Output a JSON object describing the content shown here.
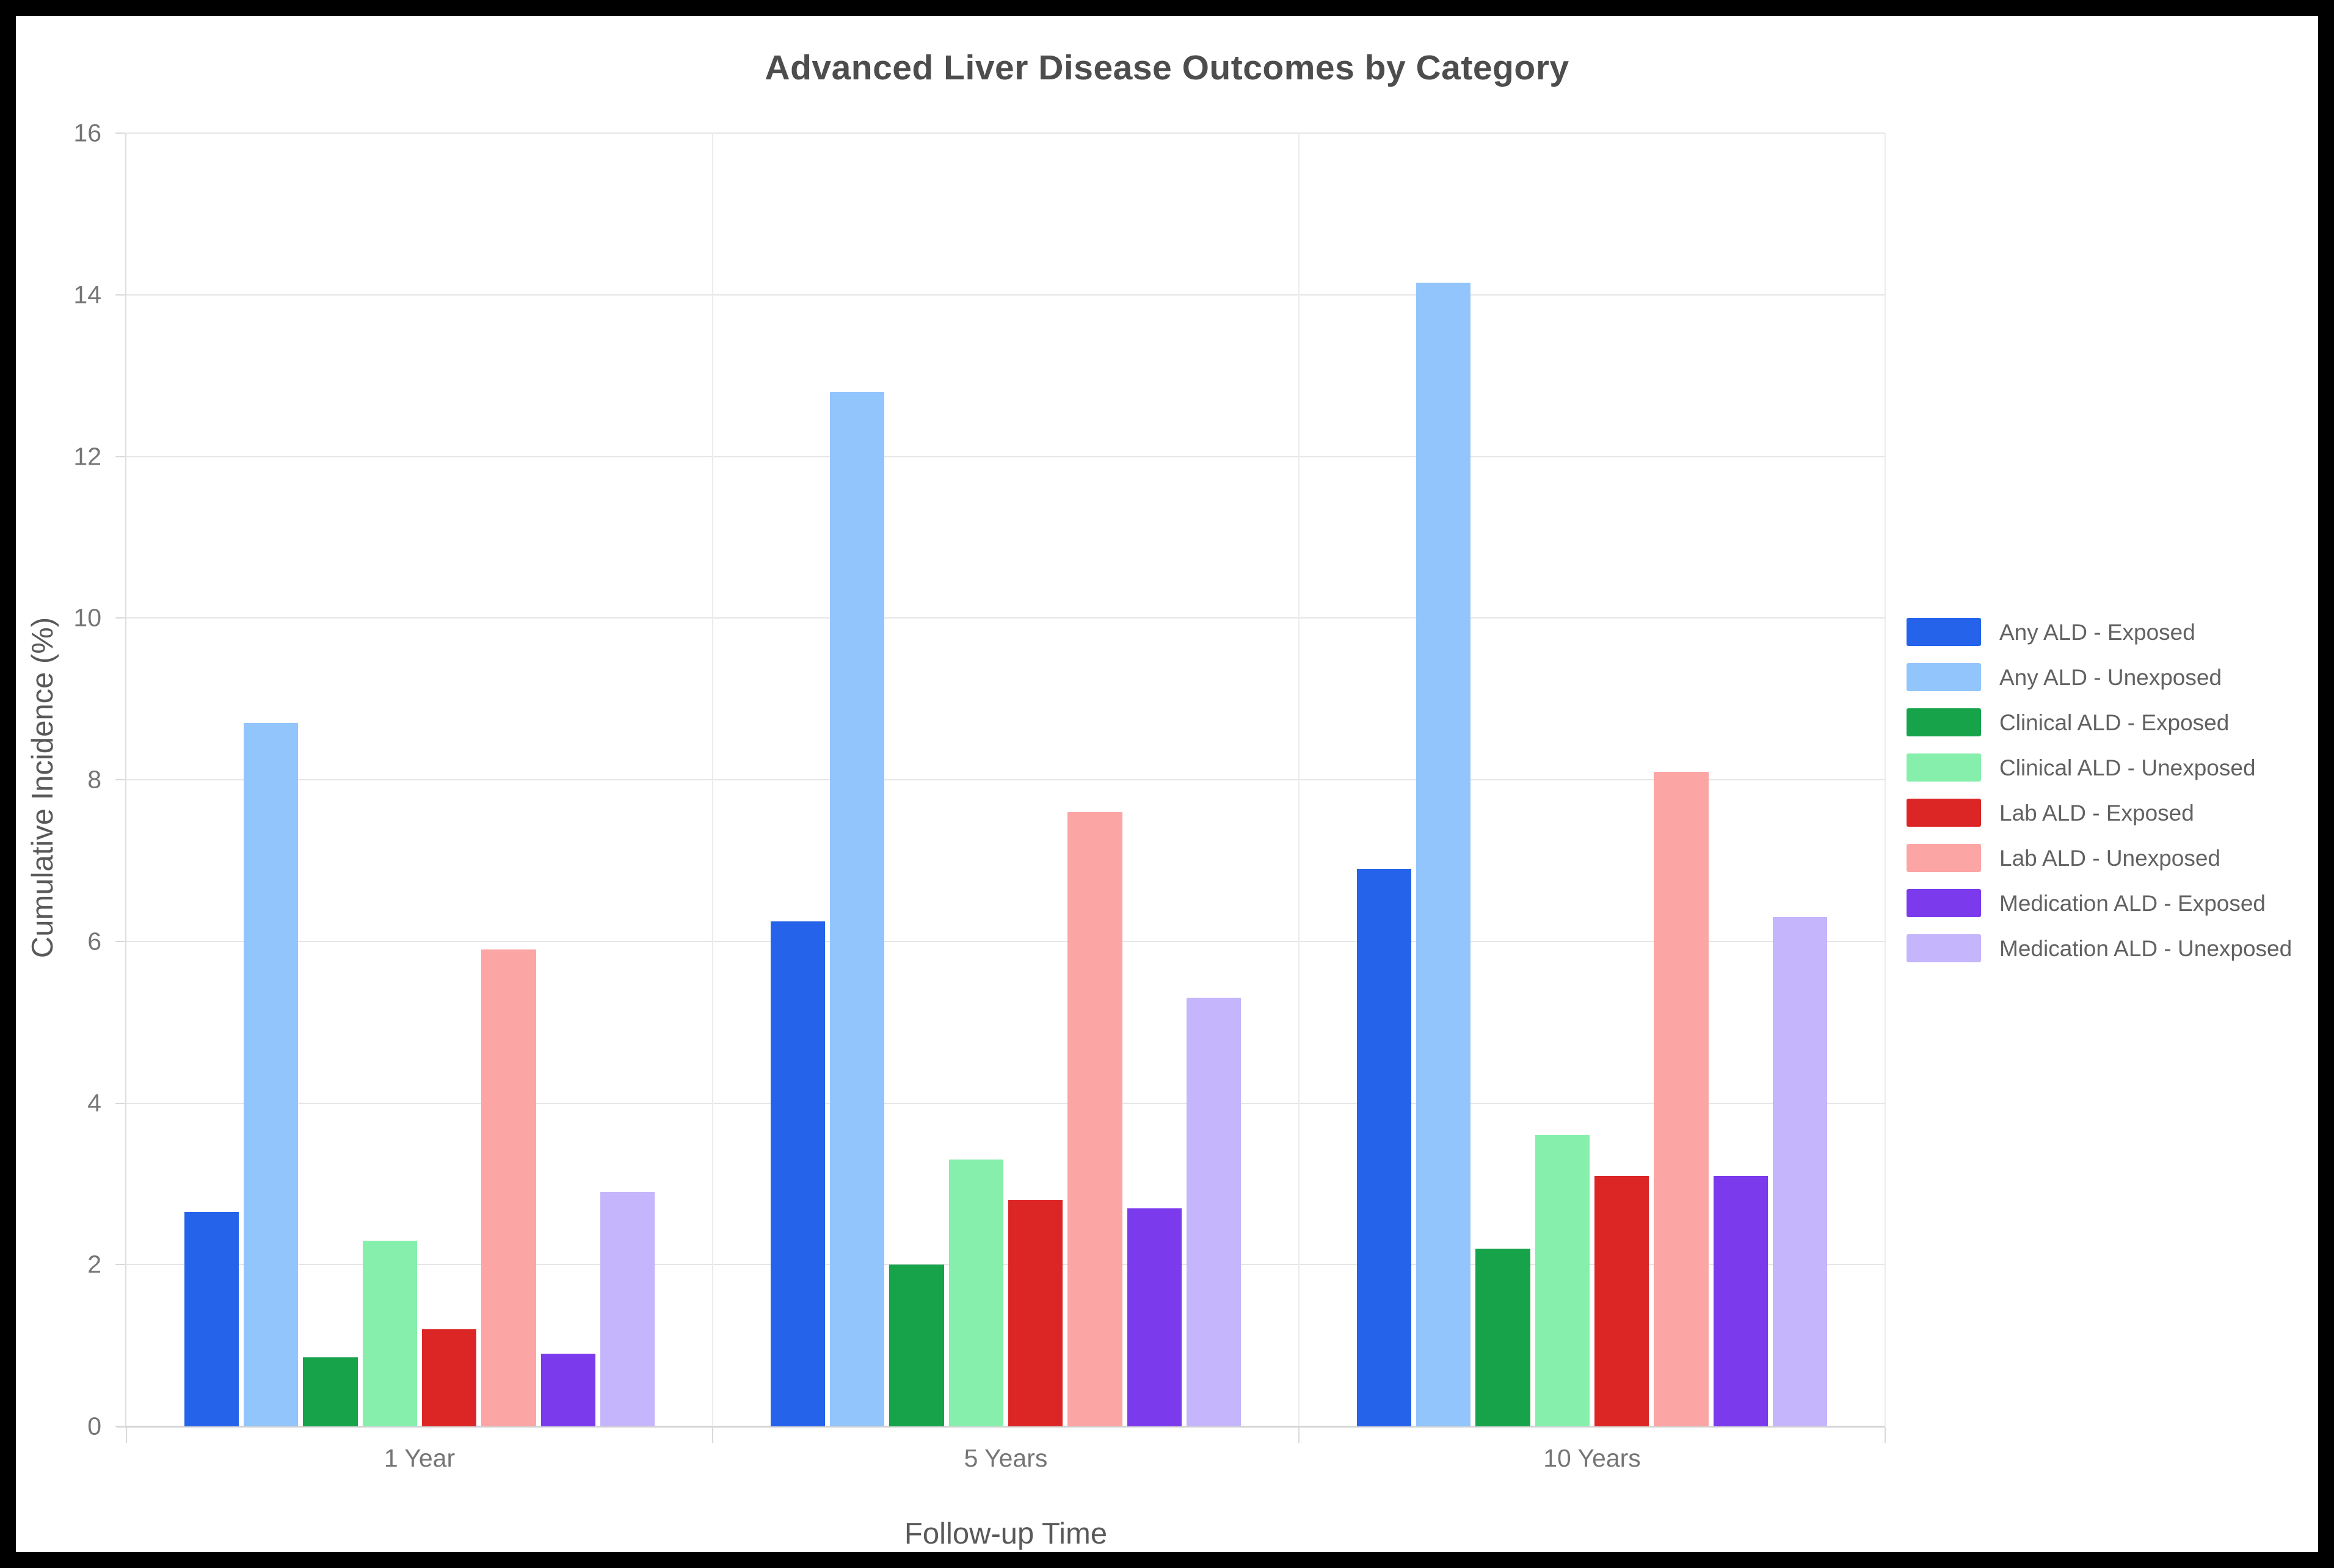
{
  "page": {
    "background": "#ffffff",
    "frame_border_color": "#000000"
  },
  "chart_data": {
    "type": "bar",
    "title": "Advanced Liver Disease Outcomes by Category",
    "xlabel": "Follow-up Time",
    "ylabel": "Cumulative Incidence (%)",
    "categories": [
      "1 Year",
      "5 Years",
      "10 Years"
    ],
    "series": [
      {
        "name": "Any ALD - Exposed",
        "color": "#2563eb",
        "values": [
          2.65,
          6.25,
          6.9
        ]
      },
      {
        "name": "Any ALD - Unexposed",
        "color": "#93c5fd",
        "values": [
          8.7,
          12.8,
          14.15
        ]
      },
      {
        "name": "Clinical ALD - Exposed",
        "color": "#16a34a",
        "values": [
          0.85,
          2.0,
          2.2
        ]
      },
      {
        "name": "Clinical ALD - Unexposed",
        "color": "#86efac",
        "values": [
          2.3,
          3.3,
          3.6
        ]
      },
      {
        "name": "Lab ALD - Exposed",
        "color": "#dc2626",
        "values": [
          1.2,
          2.8,
          3.1
        ]
      },
      {
        "name": "Lab ALD - Unexposed",
        "color": "#fca5a5",
        "values": [
          5.9,
          7.6,
          8.1
        ]
      },
      {
        "name": "Medication ALD - Exposed",
        "color": "#7c3aed",
        "values": [
          0.9,
          2.7,
          3.1
        ]
      },
      {
        "name": "Medication ALD - Unexposed",
        "color": "#c4b5fd",
        "values": [
          2.9,
          5.3,
          6.3
        ]
      }
    ],
    "ylim": [
      0,
      16
    ],
    "yticks": [
      0,
      2,
      4,
      6,
      8,
      10,
      12,
      14,
      16
    ],
    "grid": true,
    "legend_position": "right"
  }
}
